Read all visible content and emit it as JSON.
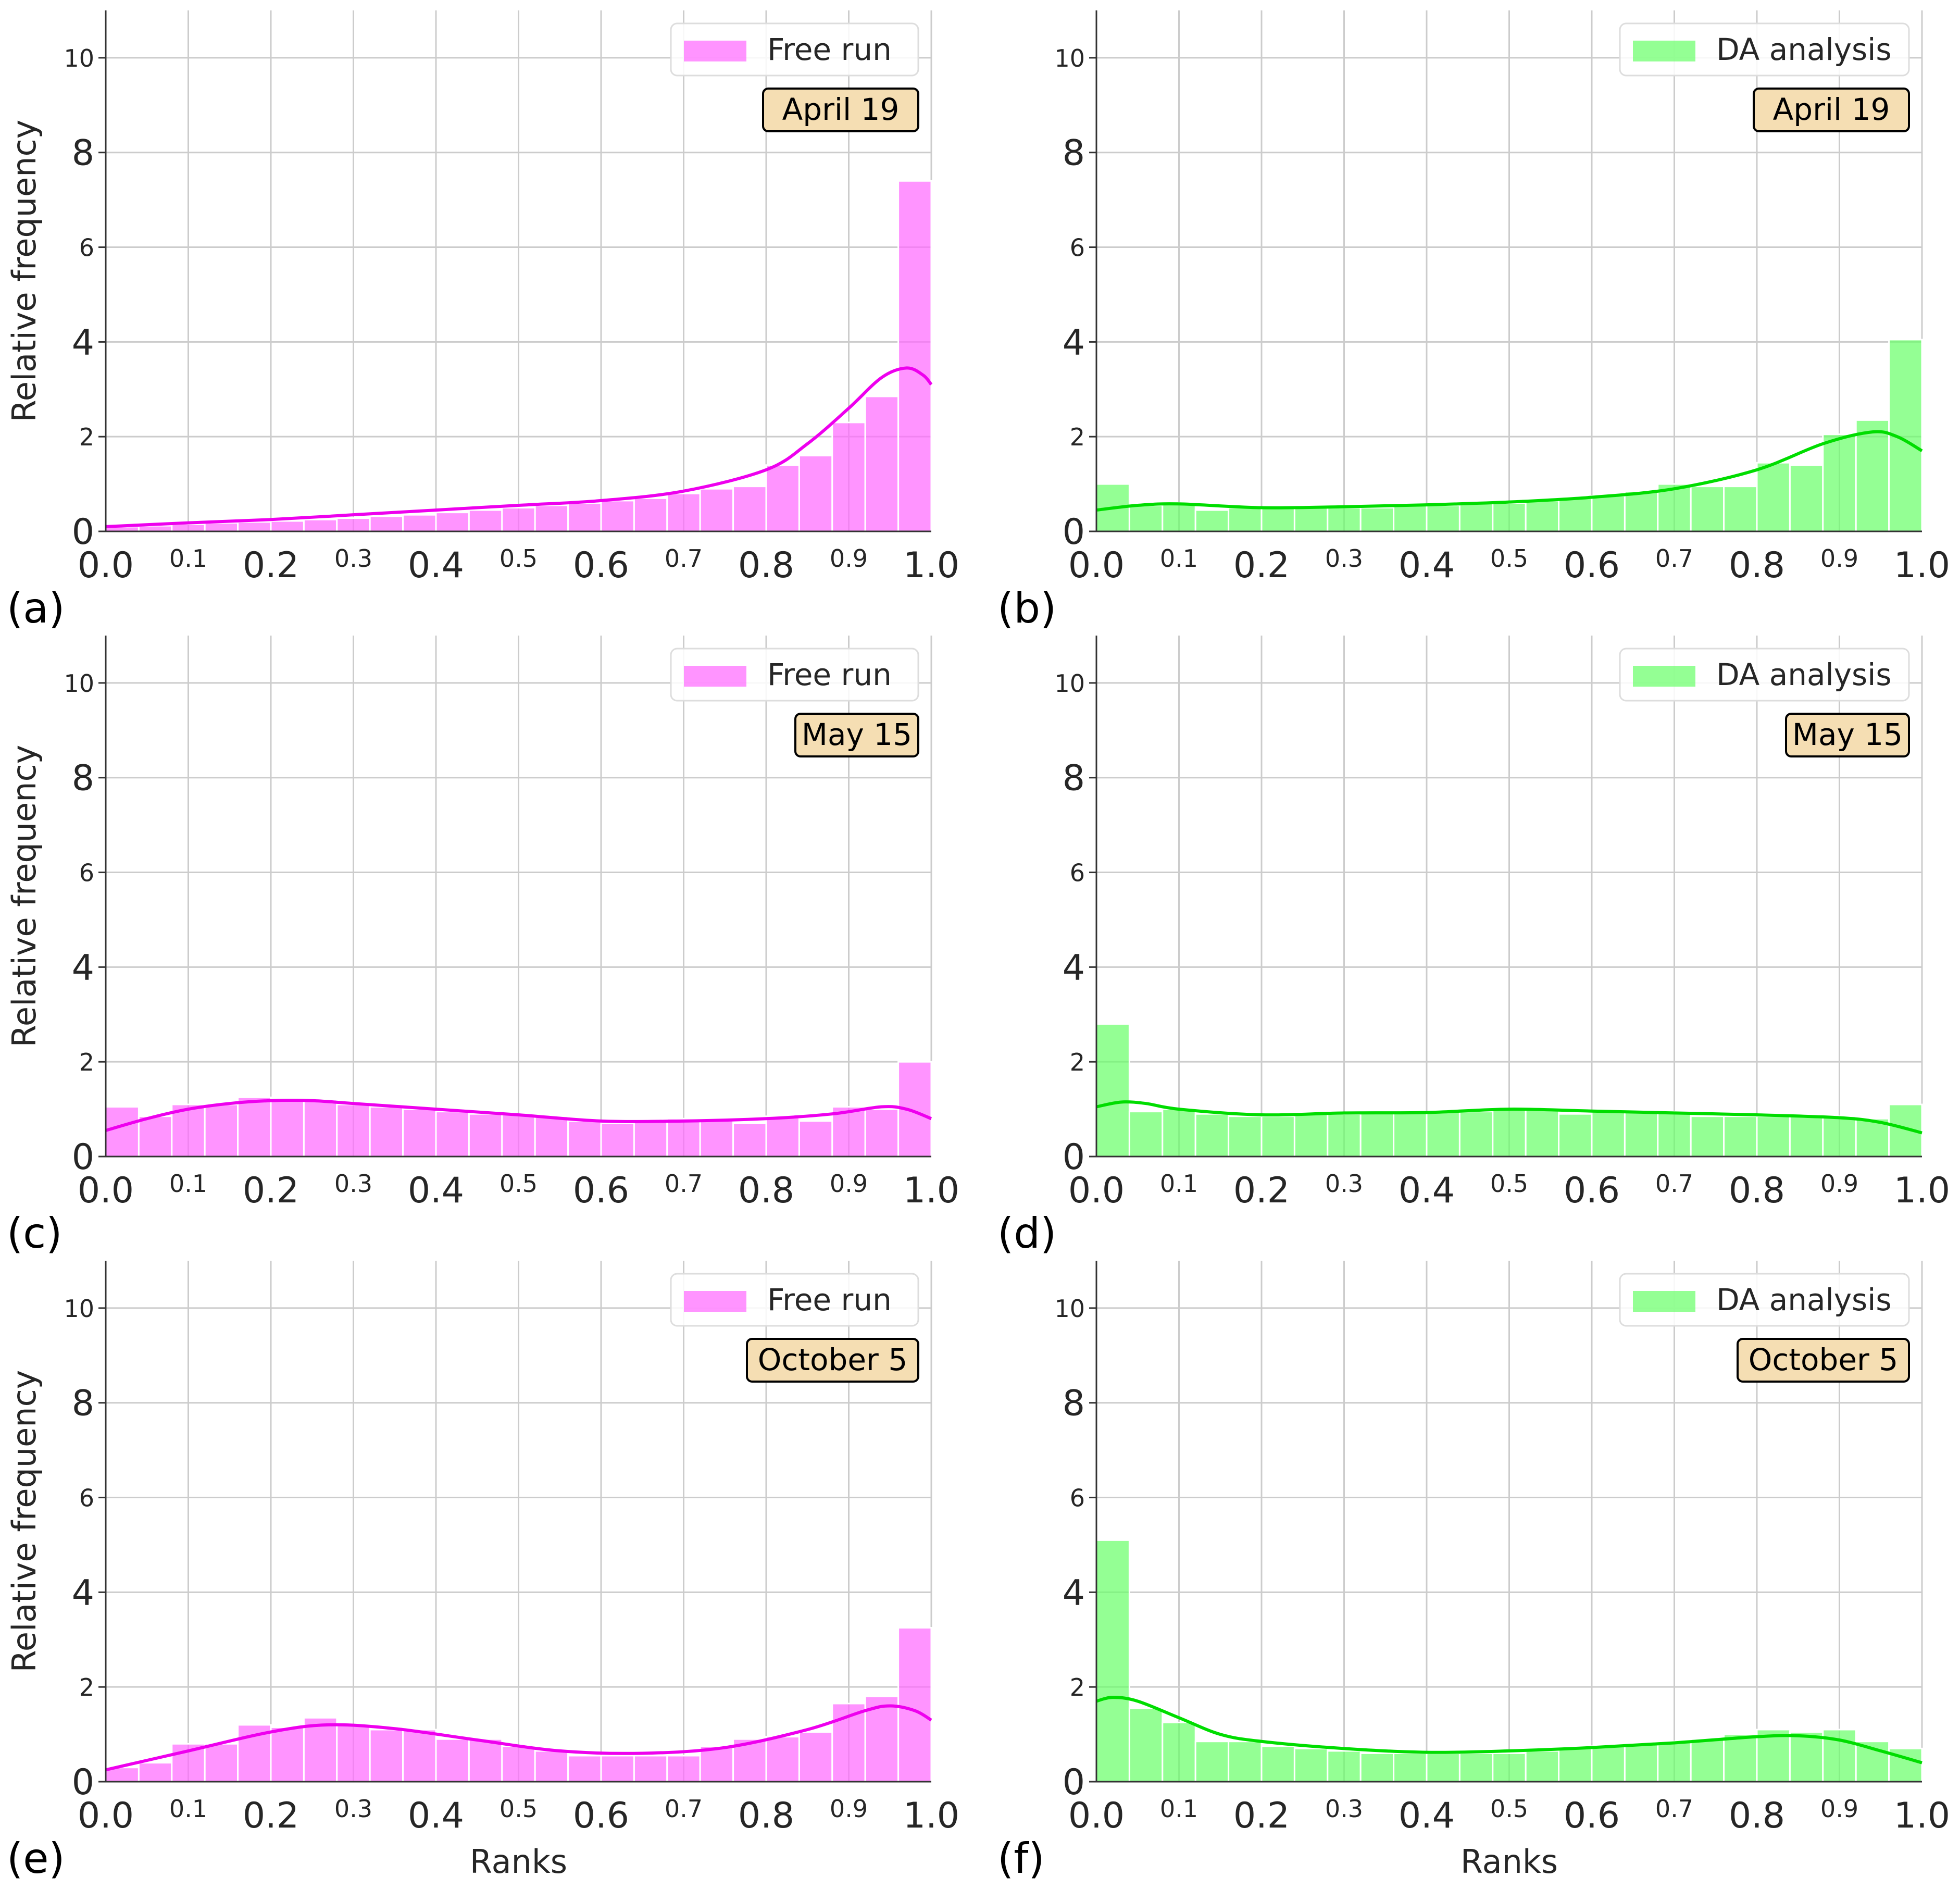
{
  "chart_data": [
    {
      "type": "bar",
      "panel_label": "(a)",
      "legend": "Free run",
      "date_label": "April 19",
      "color": "#ff66ff",
      "line_color": "#ee00ee",
      "xlabel": "",
      "ylabel": "Relative frequency",
      "xlim": [
        0.0,
        1.0
      ],
      "ylim": [
        0,
        11
      ],
      "grid": true,
      "legend_position": "top-right",
      "x_major_ticks": [
        "0.0",
        "0.2",
        "0.4",
        "0.6",
        "0.8",
        "1.0"
      ],
      "x_minor_ticks": [
        "0.1",
        "0.3",
        "0.5",
        "0.7",
        "0.9"
      ],
      "y_major_ticks": [
        "0",
        "4",
        "8"
      ],
      "y_minor_ticks": [
        "2",
        "6",
        "10"
      ],
      "bin_width": 0.04,
      "values": [
        0.1,
        0.12,
        0.15,
        0.18,
        0.2,
        0.22,
        0.25,
        0.28,
        0.32,
        0.35,
        0.4,
        0.45,
        0.5,
        0.55,
        0.6,
        0.65,
        0.7,
        0.8,
        0.9,
        0.95,
        1.4,
        1.6,
        2.3,
        2.85,
        7.4
      ],
      "kde": {
        "x": [
          0.0,
          0.1,
          0.2,
          0.3,
          0.4,
          0.5,
          0.6,
          0.7,
          0.8,
          0.85,
          0.9,
          0.94,
          0.97,
          0.99,
          1.0
        ],
        "y": [
          0.1,
          0.18,
          0.25,
          0.35,
          0.45,
          0.55,
          0.65,
          0.85,
          1.3,
          1.85,
          2.6,
          3.25,
          3.45,
          3.3,
          3.1
        ]
      }
    },
    {
      "type": "bar",
      "panel_label": "(b)",
      "legend": "DA analysis",
      "date_label": "April 19",
      "color": "#66ff66",
      "line_color": "#00dd00",
      "xlabel": "",
      "ylabel": "",
      "xlim": [
        0.0,
        1.0
      ],
      "ylim": [
        0,
        11
      ],
      "grid": true,
      "legend_position": "top-right",
      "x_major_ticks": [
        "0.0",
        "0.2",
        "0.4",
        "0.6",
        "0.8",
        "1.0"
      ],
      "x_minor_ticks": [
        "0.1",
        "0.3",
        "0.5",
        "0.7",
        "0.9"
      ],
      "y_major_ticks": [
        "0",
        "4",
        "8"
      ],
      "y_minor_ticks": [
        "2",
        "6",
        "10"
      ],
      "bin_width": 0.04,
      "values": [
        1.0,
        0.55,
        0.6,
        0.45,
        0.5,
        0.5,
        0.5,
        0.5,
        0.5,
        0.55,
        0.55,
        0.6,
        0.6,
        0.65,
        0.7,
        0.75,
        0.85,
        1.0,
        0.95,
        0.95,
        1.45,
        1.4,
        2.05,
        2.35,
        4.05
      ],
      "kde": {
        "x": [
          0.0,
          0.05,
          0.1,
          0.2,
          0.3,
          0.4,
          0.5,
          0.6,
          0.7,
          0.8,
          0.88,
          0.94,
          0.97,
          1.0
        ],
        "y": [
          0.45,
          0.55,
          0.58,
          0.5,
          0.52,
          0.56,
          0.62,
          0.72,
          0.9,
          1.3,
          1.85,
          2.1,
          2.0,
          1.7
        ]
      }
    },
    {
      "type": "bar",
      "panel_label": "(c)",
      "legend": "Free run",
      "date_label": "May 15",
      "color": "#ff66ff",
      "line_color": "#ee00ee",
      "xlabel": "",
      "ylabel": "Relative frequency",
      "xlim": [
        0.0,
        1.0
      ],
      "ylim": [
        0,
        11
      ],
      "grid": true,
      "legend_position": "top-right",
      "x_major_ticks": [
        "0.0",
        "0.2",
        "0.4",
        "0.6",
        "0.8",
        "1.0"
      ],
      "x_minor_ticks": [
        "0.1",
        "0.3",
        "0.5",
        "0.7",
        "0.9"
      ],
      "y_major_ticks": [
        "0",
        "4",
        "8"
      ],
      "y_minor_ticks": [
        "2",
        "6",
        "10"
      ],
      "bin_width": 0.04,
      "values": [
        1.05,
        0.85,
        1.1,
        1.1,
        1.25,
        1.2,
        1.2,
        1.1,
        1.05,
        1.0,
        0.95,
        0.9,
        0.9,
        0.85,
        0.75,
        0.7,
        0.75,
        0.8,
        0.8,
        0.7,
        0.85,
        0.75,
        1.05,
        1.0,
        2.0
      ],
      "kde": {
        "x": [
          0.0,
          0.05,
          0.1,
          0.15,
          0.2,
          0.25,
          0.3,
          0.4,
          0.5,
          0.6,
          0.7,
          0.8,
          0.88,
          0.94,
          0.97,
          1.0
        ],
        "y": [
          0.55,
          0.8,
          1.0,
          1.12,
          1.18,
          1.18,
          1.12,
          1.0,
          0.88,
          0.75,
          0.75,
          0.8,
          0.9,
          1.05,
          1.0,
          0.8
        ]
      }
    },
    {
      "type": "bar",
      "panel_label": "(d)",
      "legend": "DA analysis",
      "date_label": "May 15",
      "color": "#66ff66",
      "line_color": "#00dd00",
      "xlabel": "",
      "ylabel": "",
      "xlim": [
        0.0,
        1.0
      ],
      "ylim": [
        0,
        11
      ],
      "grid": true,
      "legend_position": "top-right",
      "x_major_ticks": [
        "0.0",
        "0.2",
        "0.4",
        "0.6",
        "0.8",
        "1.0"
      ],
      "x_minor_ticks": [
        "0.1",
        "0.3",
        "0.5",
        "0.7",
        "0.9"
      ],
      "y_major_ticks": [
        "0",
        "4",
        "8"
      ],
      "y_minor_ticks": [
        "2",
        "6",
        "10"
      ],
      "bin_width": 0.04,
      "values": [
        2.8,
        0.95,
        1.0,
        0.9,
        0.85,
        0.85,
        0.9,
        0.9,
        0.95,
        0.95,
        0.95,
        0.95,
        1.0,
        1.0,
        0.9,
        0.95,
        0.95,
        0.95,
        0.85,
        0.85,
        0.85,
        0.85,
        0.85,
        0.8,
        1.1
      ],
      "kde": {
        "x": [
          0.0,
          0.03,
          0.06,
          0.1,
          0.2,
          0.3,
          0.4,
          0.5,
          0.6,
          0.7,
          0.8,
          0.9,
          0.95,
          1.0
        ],
        "y": [
          1.05,
          1.15,
          1.12,
          1.0,
          0.88,
          0.92,
          0.93,
          1.0,
          0.96,
          0.92,
          0.88,
          0.82,
          0.72,
          0.5
        ]
      }
    },
    {
      "type": "bar",
      "panel_label": "(e)",
      "legend": "Free run",
      "date_label": "October 5",
      "color": "#ff66ff",
      "line_color": "#ee00ee",
      "xlabel": "Ranks",
      "ylabel": "Relative frequency",
      "xlim": [
        0.0,
        1.0
      ],
      "ylim": [
        0,
        11
      ],
      "grid": true,
      "legend_position": "top-right",
      "x_major_ticks": [
        "0.0",
        "0.2",
        "0.4",
        "0.6",
        "0.8",
        "1.0"
      ],
      "x_minor_ticks": [
        "0.1",
        "0.3",
        "0.5",
        "0.7",
        "0.9"
      ],
      "y_major_ticks": [
        "0",
        "4",
        "8"
      ],
      "y_minor_ticks": [
        "2",
        "6",
        "10"
      ],
      "bin_width": 0.04,
      "values": [
        0.3,
        0.4,
        0.8,
        0.8,
        1.2,
        1.15,
        1.35,
        1.2,
        1.1,
        1.1,
        0.9,
        0.9,
        0.75,
        0.65,
        0.55,
        0.55,
        0.55,
        0.55,
        0.75,
        0.9,
        0.95,
        1.05,
        1.65,
        1.8,
        3.25
      ],
      "kde": {
        "x": [
          0.0,
          0.1,
          0.2,
          0.27,
          0.35,
          0.45,
          0.55,
          0.65,
          0.75,
          0.85,
          0.92,
          0.95,
          0.98,
          1.0
        ],
        "y": [
          0.25,
          0.65,
          1.05,
          1.2,
          1.12,
          0.88,
          0.65,
          0.6,
          0.72,
          1.1,
          1.5,
          1.6,
          1.5,
          1.3
        ]
      }
    },
    {
      "type": "bar",
      "panel_label": "(f)",
      "legend": "DA analysis",
      "date_label": "October 5",
      "color": "#66ff66",
      "line_color": "#00dd00",
      "xlabel": "Ranks",
      "ylabel": "",
      "xlim": [
        0.0,
        1.0
      ],
      "ylim": [
        0,
        11
      ],
      "grid": true,
      "legend_position": "top-right",
      "x_major_ticks": [
        "0.0",
        "0.2",
        "0.4",
        "0.6",
        "0.8",
        "1.0"
      ],
      "x_minor_ticks": [
        "0.1",
        "0.3",
        "0.5",
        "0.7",
        "0.9"
      ],
      "y_major_ticks": [
        "0",
        "4",
        "8"
      ],
      "y_minor_ticks": [
        "2",
        "6",
        "10"
      ],
      "bin_width": 0.04,
      "values": [
        5.1,
        1.55,
        1.25,
        0.85,
        0.85,
        0.75,
        0.7,
        0.65,
        0.6,
        0.6,
        0.6,
        0.6,
        0.6,
        0.65,
        0.7,
        0.75,
        0.8,
        0.85,
        0.9,
        1.0,
        1.1,
        1.05,
        1.1,
        0.85,
        0.7
      ],
      "kde": {
        "x": [
          0.0,
          0.02,
          0.05,
          0.1,
          0.15,
          0.2,
          0.3,
          0.4,
          0.5,
          0.6,
          0.7,
          0.8,
          0.85,
          0.9,
          0.95,
          1.0
        ],
        "y": [
          1.7,
          1.78,
          1.7,
          1.35,
          1.0,
          0.85,
          0.7,
          0.62,
          0.65,
          0.72,
          0.82,
          0.95,
          0.97,
          0.88,
          0.65,
          0.4
        ]
      }
    }
  ]
}
